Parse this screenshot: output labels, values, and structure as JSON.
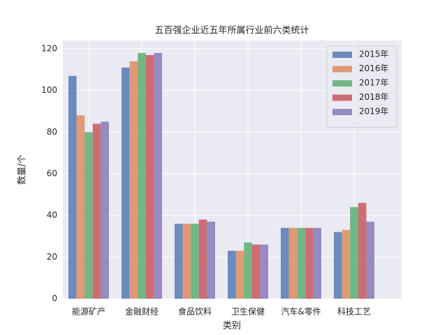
{
  "chart_data": {
    "type": "bar",
    "title": "五百强企业近五年所属行业前六类统计",
    "xlabel": "类别",
    "ylabel": "数量/个",
    "categories": [
      "能源矿产",
      "金融财经",
      "食品饮料",
      "卫生保健",
      "汽车&零件",
      "科技工艺"
    ],
    "series": [
      {
        "name": "2015年",
        "color": "#4c72b0",
        "values": [
          107,
          111,
          36,
          23,
          34,
          32
        ]
      },
      {
        "name": "2016年",
        "color": "#dd8452",
        "values": [
          88,
          114,
          36,
          23,
          34,
          33
        ]
      },
      {
        "name": "2017年",
        "color": "#55a868",
        "values": [
          80,
          118,
          36,
          27,
          34,
          44
        ]
      },
      {
        "name": "2018年",
        "color": "#c44e52",
        "values": [
          84,
          117,
          38,
          26,
          34,
          46
        ]
      },
      {
        "name": "2019年",
        "color": "#8172b3",
        "values": [
          85,
          118,
          37,
          26,
          34,
          37
        ]
      }
    ],
    "ylim": [
      0,
      124
    ],
    "yticks": [
      0,
      20,
      40,
      60,
      80,
      100,
      120
    ],
    "grid": true,
    "legend": "upper right"
  }
}
